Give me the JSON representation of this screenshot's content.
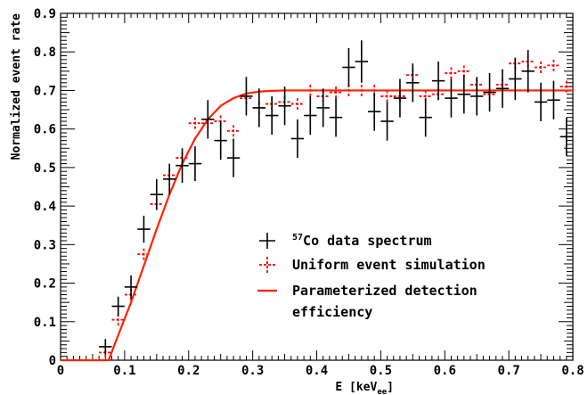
{
  "chart_data": {
    "type": "scatter",
    "xlabel": "E [keV",
    "xlabel_sub": "ee",
    "xlabel_close": "]",
    "ylabel": "Normalized event rate",
    "xlim": [
      0,
      0.8
    ],
    "ylim": [
      0,
      0.9
    ],
    "x_ticks": [
      0,
      0.1,
      0.2,
      0.3,
      0.4,
      0.5,
      0.6,
      0.7,
      0.8
    ],
    "x_tick_labels": [
      "0",
      "0.1",
      "0.2",
      "0.3",
      "0.4",
      "0.5",
      "0.6",
      "0.7",
      "0.8"
    ],
    "y_ticks": [
      0,
      0.1,
      0.2,
      0.3,
      0.4,
      0.5,
      0.6,
      0.7,
      0.8,
      0.9
    ],
    "y_tick_labels": [
      "0",
      "0.1",
      "0.2",
      "0.3",
      "0.4",
      "0.5",
      "0.6",
      "0.7",
      "0.8",
      "0.9"
    ],
    "legend_position": "right",
    "series": [
      {
        "name": "data spectrum",
        "name_sup": "57",
        "name_element": "Co",
        "color": "#000000",
        "style": "errorbar-cross",
        "x": [
          0.07,
          0.09,
          0.11,
          0.13,
          0.15,
          0.17,
          0.19,
          0.21,
          0.23,
          0.25,
          0.27,
          0.29,
          0.31,
          0.33,
          0.35,
          0.37,
          0.39,
          0.41,
          0.43,
          0.45,
          0.47,
          0.49,
          0.51,
          0.53,
          0.55,
          0.57,
          0.59,
          0.61,
          0.63,
          0.65,
          0.67,
          0.69,
          0.71,
          0.73,
          0.75,
          0.77,
          0.79
        ],
        "y": [
          0.035,
          0.14,
          0.19,
          0.34,
          0.43,
          0.47,
          0.505,
          0.51,
          0.625,
          0.57,
          0.525,
          0.685,
          0.655,
          0.635,
          0.66,
          0.575,
          0.635,
          0.655,
          0.63,
          0.76,
          0.775,
          0.645,
          0.62,
          0.68,
          0.72,
          0.63,
          0.725,
          0.68,
          0.69,
          0.685,
          0.695,
          0.705,
          0.73,
          0.75,
          0.67,
          0.675,
          0.58
        ],
        "yerr": [
          0.02,
          0.025,
          0.03,
          0.035,
          0.04,
          0.04,
          0.045,
          0.045,
          0.05,
          0.05,
          0.05,
          0.05,
          0.05,
          0.05,
          0.05,
          0.05,
          0.05,
          0.05,
          0.05,
          0.05,
          0.055,
          0.05,
          0.05,
          0.05,
          0.05,
          0.05,
          0.05,
          0.05,
          0.05,
          0.05,
          0.05,
          0.05,
          0.055,
          0.055,
          0.05,
          0.05,
          0.05
        ],
        "xerr": 0.01
      },
      {
        "name": "Uniform event simulation",
        "color": "#ff0000",
        "style": "dashed-cross",
        "x": [
          0.07,
          0.09,
          0.11,
          0.13,
          0.15,
          0.17,
          0.19,
          0.21,
          0.23,
          0.25,
          0.27,
          0.29,
          0.31,
          0.33,
          0.35,
          0.37,
          0.39,
          0.41,
          0.43,
          0.45,
          0.47,
          0.49,
          0.51,
          0.53,
          0.55,
          0.57,
          0.59,
          0.61,
          0.63,
          0.65,
          0.67,
          0.69,
          0.71,
          0.73,
          0.75,
          0.77,
          0.79
        ],
        "y": [
          0.02,
          0.105,
          0.17,
          0.275,
          0.405,
          0.48,
          0.525,
          0.615,
          0.615,
          0.62,
          0.595,
          0.68,
          0.655,
          0.665,
          0.67,
          0.665,
          0.7,
          0.685,
          0.695,
          0.7,
          0.7,
          0.7,
          0.685,
          0.685,
          0.74,
          0.685,
          0.69,
          0.745,
          0.75,
          0.715,
          0.69,
          0.715,
          0.77,
          0.775,
          0.76,
          0.765,
          0.71
        ],
        "yerr": [
          0.012,
          0.015,
          0.015,
          0.015,
          0.015,
          0.015,
          0.015,
          0.015,
          0.015,
          0.015,
          0.015,
          0.015,
          0.015,
          0.015,
          0.015,
          0.015,
          0.015,
          0.015,
          0.015,
          0.015,
          0.015,
          0.015,
          0.015,
          0.015,
          0.015,
          0.015,
          0.015,
          0.015,
          0.015,
          0.015,
          0.015,
          0.015,
          0.015,
          0.015,
          0.015,
          0.015,
          0.015
        ],
        "xerr": 0.01
      },
      {
        "name": "Parameterized detection efficiency",
        "name_line2": "efficiency",
        "name_line1": "Parameterized detection",
        "color": "#ff2200",
        "style": "line",
        "x": [
          0.0,
          0.075,
          0.09,
          0.11,
          0.13,
          0.15,
          0.17,
          0.19,
          0.21,
          0.23,
          0.25,
          0.27,
          0.29,
          0.31,
          0.33,
          0.35,
          0.37,
          0.4,
          0.45,
          0.5,
          0.6,
          0.7,
          0.8
        ],
        "y": [
          0.0,
          0.0,
          0.065,
          0.15,
          0.245,
          0.34,
          0.43,
          0.51,
          0.575,
          0.625,
          0.66,
          0.68,
          0.692,
          0.697,
          0.699,
          0.7,
          0.7,
          0.7,
          0.7,
          0.7,
          0.7,
          0.7,
          0.7
        ]
      }
    ]
  }
}
